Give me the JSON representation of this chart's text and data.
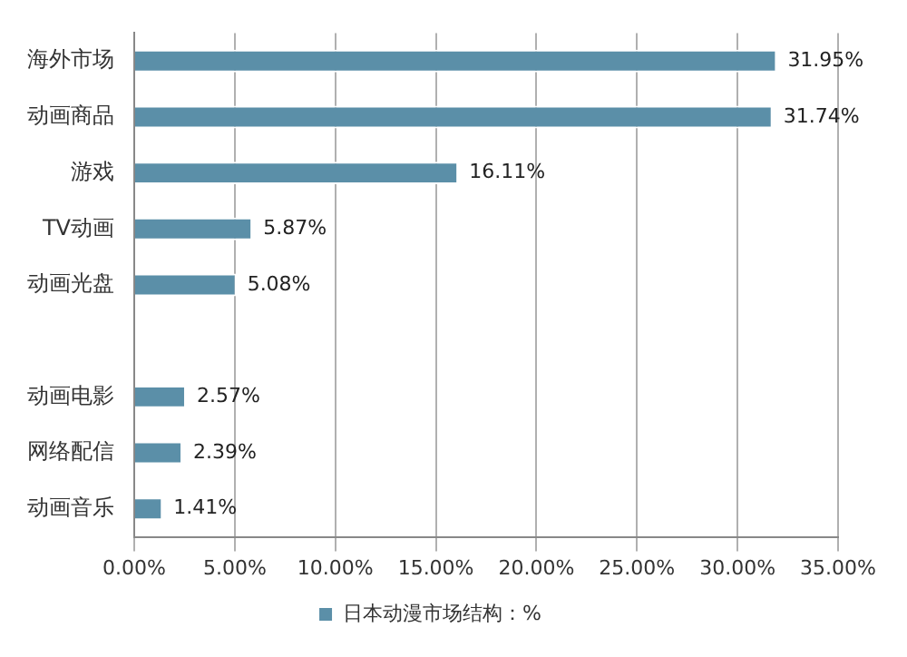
{
  "chart_data": {
    "type": "bar",
    "orientation": "horizontal",
    "categories": [
      "海外市场",
      "动画商品",
      "游戏",
      "TV动画",
      "动画光盘",
      null,
      "动画电影",
      "网络配信",
      "动画音乐"
    ],
    "series": [
      {
        "name": "日本动漫市场结构：%",
        "color": "#5b8fa8",
        "values": [
          31.95,
          31.74,
          16.11,
          5.87,
          5.08,
          null,
          2.57,
          2.39,
          1.41
        ],
        "value_labels": [
          "31.95%",
          "31.74%",
          "16.11%",
          "5.87%",
          "5.08%",
          null,
          "2.57%",
          "2.39%",
          "1.41%"
        ]
      }
    ],
    "xlim": [
      0,
      35
    ],
    "xticks": [
      {
        "value": 0,
        "label": "0.00%"
      },
      {
        "value": 5,
        "label": "5.00%"
      },
      {
        "value": 10,
        "label": "10.00%"
      },
      {
        "value": 15,
        "label": "15.00%"
      },
      {
        "value": 20,
        "label": "20.00%"
      },
      {
        "value": 25,
        "label": "25.00%"
      },
      {
        "value": 30,
        "label": "30.00%"
      },
      {
        "value": 35,
        "label": "35.00%"
      }
    ],
    "grid": "x",
    "legend": "bottom"
  }
}
